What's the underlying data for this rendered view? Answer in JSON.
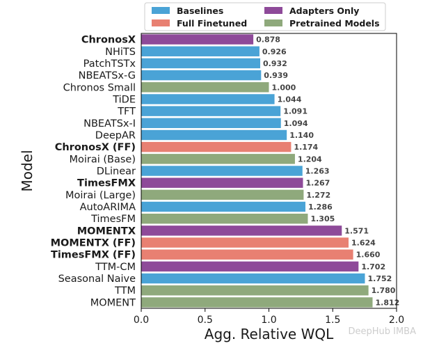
{
  "chart_data": {
    "type": "bar",
    "orientation": "horizontal",
    "xlabel": "Agg. Relative WQL",
    "ylabel": "Model",
    "xlim": [
      0,
      2.0
    ],
    "xticks": [
      "0.0",
      "0.5",
      "1.0",
      "1.5",
      "2.0"
    ],
    "grid": false,
    "legend_placement": "top",
    "legend": [
      {
        "name": "Baselines",
        "color": "#4aa3d6"
      },
      {
        "name": "Full Finetuned",
        "color": "#e88072"
      },
      {
        "name": "Adapters Only",
        "color": "#8e4a99"
      },
      {
        "name": "Pretrained Models",
        "color": "#8fa97c"
      }
    ],
    "bars": [
      {
        "label": "ChronosX",
        "value": 0.878,
        "value_label": "0.878",
        "group": "Adapters Only",
        "bold": true
      },
      {
        "label": "NHiTS",
        "value": 0.926,
        "value_label": "0.926",
        "group": "Baselines",
        "bold": false
      },
      {
        "label": "PatchTSTx",
        "value": 0.932,
        "value_label": "0.932",
        "group": "Baselines",
        "bold": false
      },
      {
        "label": "NBEATSx-G",
        "value": 0.939,
        "value_label": "0.939",
        "group": "Baselines",
        "bold": false
      },
      {
        "label": "Chronos Small",
        "value": 1.0,
        "value_label": "1.000",
        "group": "Pretrained Models",
        "bold": false
      },
      {
        "label": "TiDE",
        "value": 1.044,
        "value_label": "1.044",
        "group": "Baselines",
        "bold": false
      },
      {
        "label": "TFT",
        "value": 1.091,
        "value_label": "1.091",
        "group": "Baselines",
        "bold": false
      },
      {
        "label": "NBEATSx-I",
        "value": 1.094,
        "value_label": "1.094",
        "group": "Baselines",
        "bold": false
      },
      {
        "label": "DeepAR",
        "value": 1.14,
        "value_label": "1.140",
        "group": "Baselines",
        "bold": false
      },
      {
        "label": "ChronosX (FF)",
        "value": 1.174,
        "value_label": "1.174",
        "group": "Full Finetuned",
        "bold": true
      },
      {
        "label": "Moirai (Base)",
        "value": 1.204,
        "value_label": "1.204",
        "group": "Pretrained Models",
        "bold": false
      },
      {
        "label": "DLinear",
        "value": 1.263,
        "value_label": "1.263",
        "group": "Baselines",
        "bold": false
      },
      {
        "label": "TimesFMX",
        "value": 1.267,
        "value_label": "1.267",
        "group": "Adapters Only",
        "bold": true
      },
      {
        "label": "Moirai (Large)",
        "value": 1.272,
        "value_label": "1.272",
        "group": "Pretrained Models",
        "bold": false
      },
      {
        "label": "AutoARIMA",
        "value": 1.286,
        "value_label": "1.286",
        "group": "Baselines",
        "bold": false
      },
      {
        "label": "TimesFM",
        "value": 1.305,
        "value_label": "1.305",
        "group": "Pretrained Models",
        "bold": false
      },
      {
        "label": "MOMENTX",
        "value": 1.571,
        "value_label": "1.571",
        "group": "Adapters Only",
        "bold": true
      },
      {
        "label": "MOMENTX (FF)",
        "value": 1.624,
        "value_label": "1.624",
        "group": "Full Finetuned",
        "bold": true
      },
      {
        "label": "TimesFMX (FF)",
        "value": 1.66,
        "value_label": "1.660",
        "group": "Full Finetuned",
        "bold": true
      },
      {
        "label": "TTM-CM",
        "value": 1.702,
        "value_label": "1.702",
        "group": "Adapters Only",
        "bold": false
      },
      {
        "label": "Seasonal Naive",
        "value": 1.752,
        "value_label": "1.752",
        "group": "Baselines",
        "bold": false
      },
      {
        "label": "TTM",
        "value": 1.78,
        "value_label": "1.780",
        "group": "Pretrained Models",
        "bold": false
      },
      {
        "label": "MOMENT",
        "value": 1.812,
        "value_label": "1.812",
        "group": "Pretrained Models",
        "bold": false
      }
    ]
  },
  "watermark": "DeepHub IMBA"
}
